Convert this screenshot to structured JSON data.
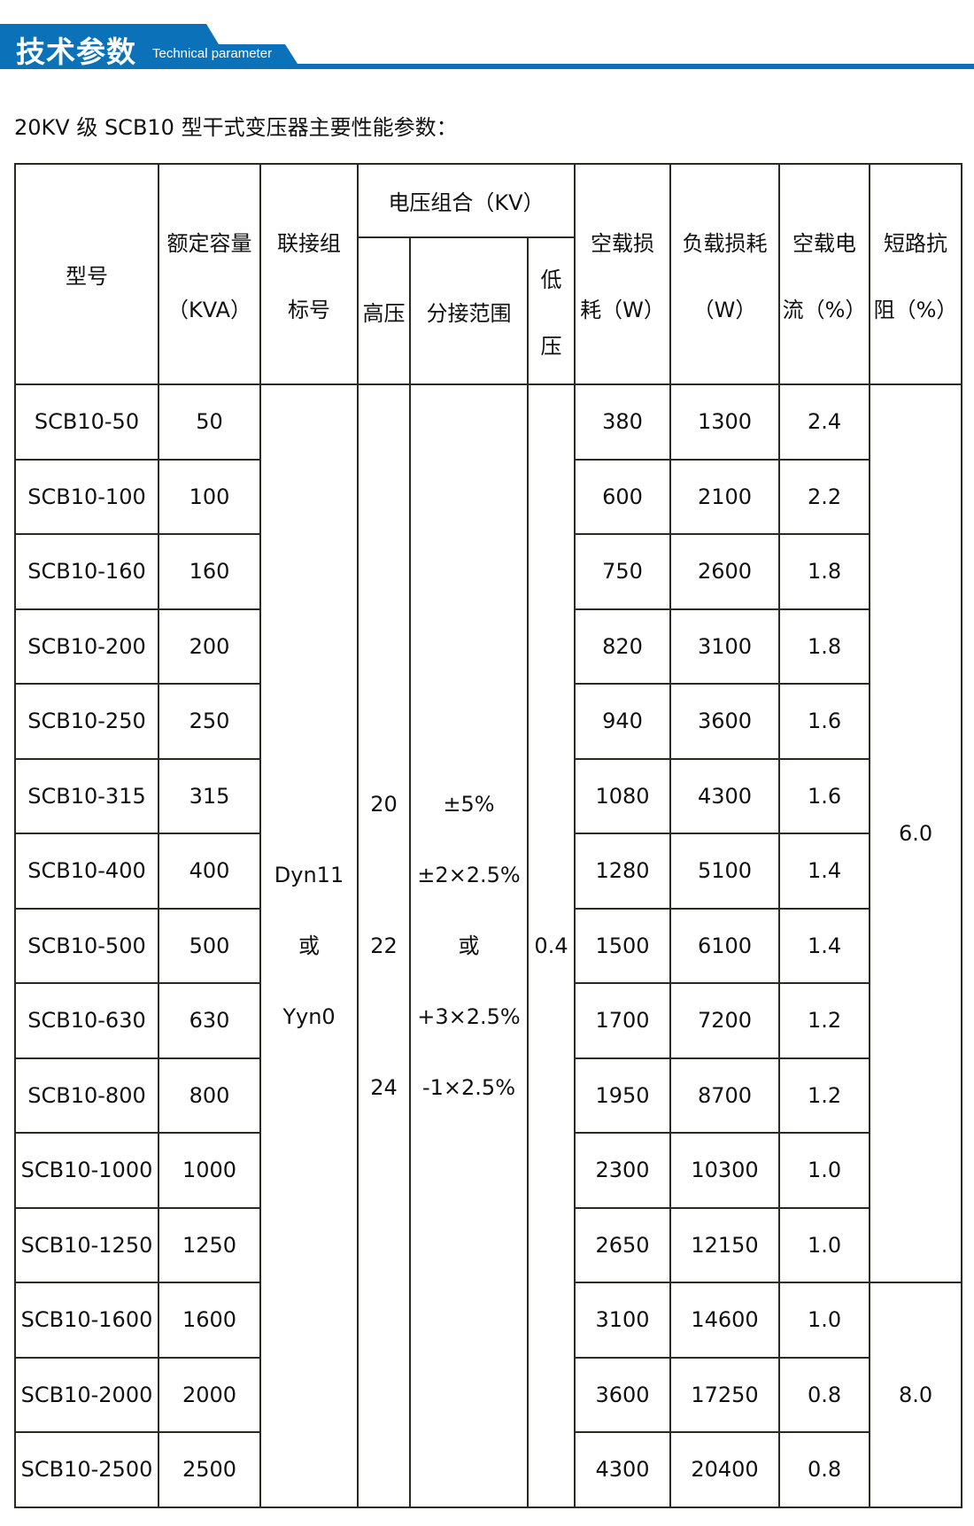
{
  "banner": {
    "title": "技术参数",
    "subtitle": "Technical parameter",
    "color": "#0b72b9"
  },
  "subtitle": "20KV 级 SCB10 型干式变压器主要性能参数：",
  "headers": {
    "model": "型号",
    "capacity": [
      "额定容量",
      "（KVA）"
    ],
    "connection": [
      "联接组",
      "标号"
    ],
    "voltage_group": "电压组合（KV）",
    "hv": "高压",
    "tap": "分接范围",
    "lv": [
      "低",
      "压"
    ],
    "noload_loss": [
      "空载损",
      "耗（W）"
    ],
    "load_loss": [
      "负载损耗",
      "（W）"
    ],
    "noload_current": [
      "空载电",
      "流（%）"
    ],
    "impedance": [
      "短路抗",
      "阻（%）"
    ]
  },
  "merged": {
    "connection": [
      "Dyn11",
      "或",
      "Yyn0"
    ],
    "hv": [
      "20",
      "22",
      "24"
    ],
    "tap": [
      "±5%",
      "±2×2.5%",
      "或",
      "+3×2.5%",
      "-1×2.5%"
    ],
    "lv": "0.4",
    "impedance": [
      "6.0",
      "8.0"
    ]
  },
  "rows": [
    {
      "model": "SCB10-50",
      "capacity": "50",
      "noload": "380",
      "load": "1300",
      "current": "2.4"
    },
    {
      "model": "SCB10-100",
      "capacity": "100",
      "noload": "600",
      "load": "2100",
      "current": "2.2"
    },
    {
      "model": "SCB10-160",
      "capacity": "160",
      "noload": "750",
      "load": "2600",
      "current": "1.8"
    },
    {
      "model": "SCB10-200",
      "capacity": "200",
      "noload": "820",
      "load": "3100",
      "current": "1.8"
    },
    {
      "model": "SCB10-250",
      "capacity": "250",
      "noload": "940",
      "load": "3600",
      "current": "1.6"
    },
    {
      "model": "SCB10-315",
      "capacity": "315",
      "noload": "1080",
      "load": "4300",
      "current": "1.6"
    },
    {
      "model": "SCB10-400",
      "capacity": "400",
      "noload": "1280",
      "load": "5100",
      "current": "1.4"
    },
    {
      "model": "SCB10-500",
      "capacity": "500",
      "noload": "1500",
      "load": "6100",
      "current": "1.4"
    },
    {
      "model": "SCB10-630",
      "capacity": "630",
      "noload": "1700",
      "load": "7200",
      "current": "1.2"
    },
    {
      "model": "SCB10-800",
      "capacity": "800",
      "noload": "1950",
      "load": "8700",
      "current": "1.2"
    },
    {
      "model": "SCB10-1000",
      "capacity": "1000",
      "noload": "2300",
      "load": "10300",
      "current": "1.0"
    },
    {
      "model": "SCB10-1250",
      "capacity": "1250",
      "noload": "2650",
      "load": "12150",
      "current": "1.0"
    },
    {
      "model": "SCB10-1600",
      "capacity": "1600",
      "noload": "3100",
      "load": "14600",
      "current": "1.0"
    },
    {
      "model": "SCB10-2000",
      "capacity": "2000",
      "noload": "3600",
      "load": "17250",
      "current": "0.8"
    },
    {
      "model": "SCB10-2500",
      "capacity": "2500",
      "noload": "4300",
      "load": "20400",
      "current": "0.8"
    }
  ]
}
